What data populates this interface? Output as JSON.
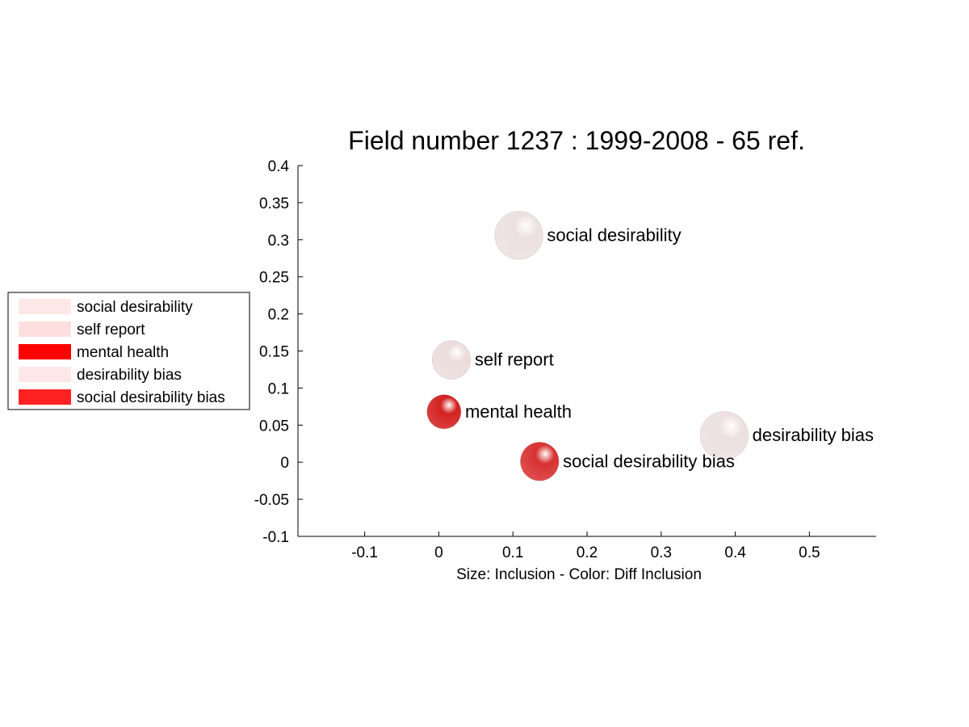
{
  "chart_data": {
    "type": "scatter",
    "title": "Field number 1237 : 1999-2008  - 65 ref.",
    "xlabel": "Size: Inclusion - Color: Diff Inclusion",
    "ylabel": "",
    "xlim": [
      -0.19,
      0.59
    ],
    "ylim": [
      -0.1,
      0.4
    ],
    "xticks": [
      "-0.1",
      "0",
      "0.1",
      "0.2",
      "0.3",
      "0.4",
      "0.5"
    ],
    "yticks": [
      "-0.1",
      "-0.05",
      "0",
      "0.05",
      "0.1",
      "0.15",
      "0.2",
      "0.25",
      "0.3",
      "0.35",
      "0.4"
    ],
    "grid": false,
    "legend_position": "left",
    "points": [
      {
        "label": "social desirability",
        "x": 0.108,
        "y": 0.306,
        "size": 0.065,
        "color": "#ece0e0"
      },
      {
        "label": "self report",
        "x": 0.017,
        "y": 0.138,
        "size": 0.052,
        "color": "#ecdcdc"
      },
      {
        "label": "mental health",
        "x": 0.007,
        "y": 0.068,
        "size": 0.046,
        "color": "#d42020"
      },
      {
        "label": "desirability bias",
        "x": 0.385,
        "y": 0.036,
        "size": 0.065,
        "color": "#ece0e0"
      },
      {
        "label": "social desirability bias",
        "x": 0.136,
        "y": 0.001,
        "size": 0.052,
        "color": "#d83030"
      }
    ],
    "legend": [
      {
        "label": "social desirability",
        "color": "#fde7e7"
      },
      {
        "label": "self report",
        "color": "#fddfdf"
      },
      {
        "label": "mental health",
        "color": "#ff0000"
      },
      {
        "label": "desirability bias",
        "color": "#fde7e7"
      },
      {
        "label": "social desirability bias",
        "color": "#ff2222"
      }
    ]
  }
}
